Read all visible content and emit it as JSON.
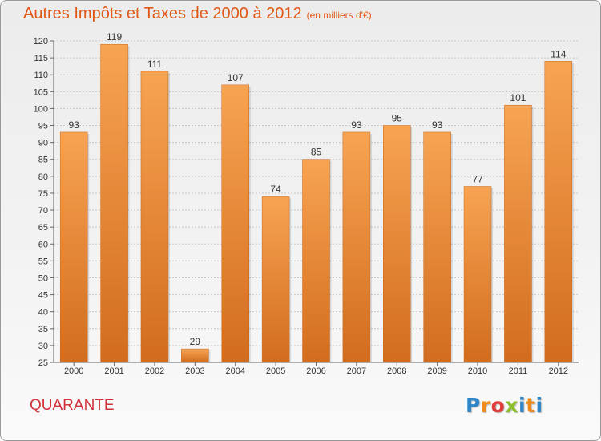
{
  "title": "Autres Impôts et Taxes de 2000 à 2012",
  "unit": "(en milliers d'€)",
  "commune": "QUARANTE",
  "logo": {
    "letters": [
      "P",
      "r",
      "o",
      "x",
      "i",
      "t",
      "i"
    ],
    "colors": [
      "#2f86c9",
      "#ef8b1d",
      "#e23c39",
      "#8dbf2b",
      "#2f86c9",
      "#ef8b1d"
    ]
  },
  "colors": {
    "bar_light": "#f7a452",
    "bar_dark": "#d26c1e",
    "title": "#e05818",
    "commune": "#d0323a"
  },
  "chart_data": {
    "type": "bar",
    "title": "Autres Impôts et Taxes de 2000 à 2012",
    "xlabel": "",
    "ylabel": "",
    "categories": [
      "2000",
      "2001",
      "2002",
      "2003",
      "2004",
      "2005",
      "2006",
      "2007",
      "2008",
      "2009",
      "2010",
      "2011",
      "2012"
    ],
    "values": [
      93,
      119,
      111,
      29,
      107,
      74,
      85,
      93,
      95,
      93,
      77,
      101,
      114
    ],
    "ylim": [
      25,
      120
    ],
    "yticks": [
      25,
      30,
      35,
      40,
      45,
      50,
      55,
      60,
      65,
      70,
      75,
      80,
      85,
      90,
      95,
      100,
      105,
      110,
      115,
      120
    ],
    "grid": true,
    "data_labels": true
  }
}
